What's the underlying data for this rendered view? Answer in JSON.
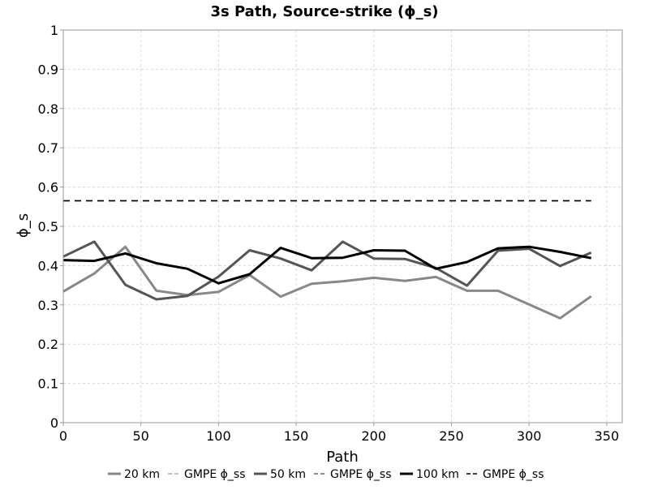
{
  "chart_data": {
    "type": "line",
    "title": "3s Path, Source-strike (ϕ_s)",
    "xlabel": "Path",
    "ylabel": "ϕ_s",
    "xlim": [
      0,
      360
    ],
    "ylim": [
      0,
      1
    ],
    "x_ticks": [
      0,
      50,
      100,
      150,
      200,
      250,
      300,
      350
    ],
    "x_tick_labels": [
      "0",
      "50",
      "100",
      "150",
      "200",
      "250",
      "300",
      "350"
    ],
    "y_ticks": [
      0,
      0.1,
      0.2,
      0.3,
      0.4,
      0.5,
      0.6,
      0.7,
      0.8,
      0.9,
      1
    ],
    "y_tick_labels": [
      "0",
      "0.1",
      "0.2",
      "0.3",
      "0.4",
      "0.5",
      "0.6",
      "0.7",
      "0.8",
      "0.9",
      "1"
    ],
    "grid": true,
    "legend_position": "bottom",
    "x": [
      0,
      20,
      40,
      60,
      80,
      100,
      120,
      140,
      160,
      180,
      200,
      220,
      240,
      260,
      280,
      300,
      320,
      340
    ],
    "series": [
      {
        "name": "20 km",
        "color": "#888888",
        "dash": "solid",
        "values": [
          0.334,
          0.38,
          0.448,
          0.336,
          0.325,
          0.333,
          0.376,
          0.321,
          0.354,
          0.36,
          0.369,
          0.361,
          0.371,
          0.336,
          0.336,
          0.301,
          0.266,
          0.322
        ]
      },
      {
        "name": "GMPE ϕ_ss",
        "color": "#aaaaaa",
        "dash": "dashed",
        "values": [
          0.565,
          0.565,
          0.565,
          0.565,
          0.565,
          0.565,
          0.565,
          0.565,
          0.565,
          0.565,
          0.565,
          0.565,
          0.565,
          0.565,
          0.565,
          0.565,
          0.565,
          0.565
        ]
      },
      {
        "name": "50 km",
        "color": "#555555",
        "dash": "solid",
        "values": [
          0.423,
          0.461,
          0.351,
          0.314,
          0.323,
          0.372,
          0.439,
          0.418,
          0.388,
          0.461,
          0.418,
          0.417,
          0.394,
          0.349,
          0.438,
          0.443,
          0.399,
          0.433
        ]
      },
      {
        "name": "GMPE ϕ_ss",
        "color": "#666666",
        "dash": "dashed",
        "values": [
          0.565,
          0.565,
          0.565,
          0.565,
          0.565,
          0.565,
          0.565,
          0.565,
          0.565,
          0.565,
          0.565,
          0.565,
          0.565,
          0.565,
          0.565,
          0.565,
          0.565,
          0.565
        ]
      },
      {
        "name": "100 km",
        "color": "#000000",
        "dash": "solid",
        "values": [
          0.414,
          0.412,
          0.431,
          0.406,
          0.392,
          0.355,
          0.378,
          0.445,
          0.419,
          0.42,
          0.439,
          0.438,
          0.392,
          0.409,
          0.444,
          0.448,
          0.435,
          0.419
        ]
      },
      {
        "name": "GMPE ϕ_ss",
        "color": "#000000",
        "dash": "dashed",
        "values": [
          0.565,
          0.565,
          0.565,
          0.565,
          0.565,
          0.565,
          0.565,
          0.565,
          0.565,
          0.565,
          0.565,
          0.565,
          0.565,
          0.565,
          0.565,
          0.565,
          0.565,
          0.565
        ]
      }
    ]
  }
}
